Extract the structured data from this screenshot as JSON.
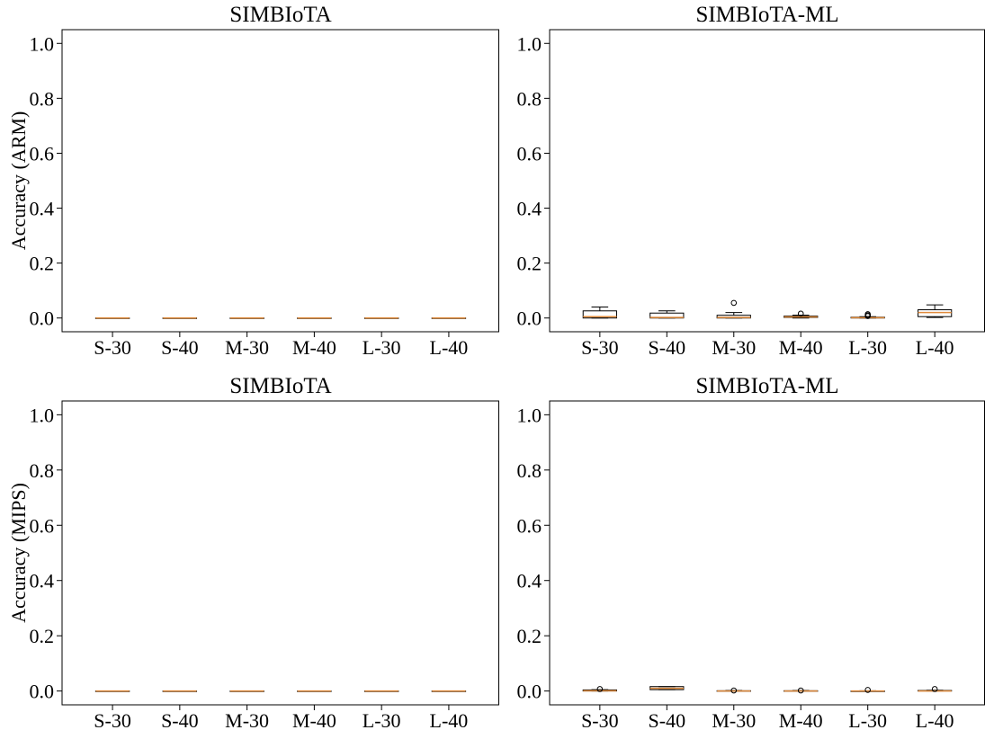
{
  "chart_data": [
    {
      "type": "box",
      "title": "SIMBIoTA",
      "ylabel": "Accuracy (ARM)",
      "xlabel": "",
      "categories": [
        "S-30",
        "S-40",
        "M-30",
        "M-40",
        "L-30",
        "L-40"
      ],
      "ylim": [
        -0.05,
        1.05
      ],
      "yticks": [
        "0.0",
        "0.2",
        "0.4",
        "0.6",
        "0.8",
        "1.0"
      ],
      "boxes": [
        {
          "whislo": 0,
          "q1": 0,
          "med": 0,
          "q3": 0,
          "whishi": 0,
          "fliers": []
        },
        {
          "whislo": 0,
          "q1": 0,
          "med": 0,
          "q3": 0,
          "whishi": 0,
          "fliers": []
        },
        {
          "whislo": 0,
          "q1": 0,
          "med": 0,
          "q3": 0,
          "whishi": 0,
          "fliers": []
        },
        {
          "whislo": 0,
          "q1": 0,
          "med": 0,
          "q3": 0,
          "whishi": 0,
          "fliers": []
        },
        {
          "whislo": 0,
          "q1": 0,
          "med": 0,
          "q3": 0,
          "whishi": 0,
          "fliers": []
        },
        {
          "whislo": 0,
          "q1": 0,
          "med": 0,
          "q3": 0,
          "whishi": 0,
          "fliers": []
        }
      ]
    },
    {
      "type": "box",
      "title": "SIMBIoTA-ML",
      "ylabel": "",
      "xlabel": "",
      "categories": [
        "S-30",
        "S-40",
        "M-30",
        "M-40",
        "L-30",
        "L-40"
      ],
      "ylim": [
        -0.05,
        1.05
      ],
      "yticks": [
        "0.0",
        "0.2",
        "0.4",
        "0.6",
        "0.8",
        "1.0"
      ],
      "boxes": [
        {
          "whislo": 0,
          "q1": 0,
          "med": 0.005,
          "q3": 0.026,
          "whishi": 0.04,
          "fliers": []
        },
        {
          "whislo": 0,
          "q1": 0,
          "med": 0.002,
          "q3": 0.018,
          "whishi": 0.026,
          "fliers": []
        },
        {
          "whislo": 0,
          "q1": 0,
          "med": 0.002,
          "q3": 0.01,
          "whishi": 0.02,
          "fliers": [
            0.055
          ]
        },
        {
          "whislo": 0,
          "q1": 0.002,
          "med": 0.004,
          "q3": 0.007,
          "whishi": 0.01,
          "fliers": [
            0.016
          ]
        },
        {
          "whislo": 0,
          "q1": 0,
          "med": 0.001,
          "q3": 0.003,
          "whishi": 0.005,
          "fliers": [
            0.007,
            0.01,
            0.014
          ]
        },
        {
          "whislo": 0.002,
          "q1": 0.005,
          "med": 0.02,
          "q3": 0.03,
          "whishi": 0.048,
          "fliers": []
        }
      ]
    },
    {
      "type": "box",
      "title": "SIMBIoTA",
      "ylabel": "Accuracy (MIPS)",
      "xlabel": "",
      "categories": [
        "S-30",
        "S-40",
        "M-30",
        "M-40",
        "L-30",
        "L-40"
      ],
      "ylim": [
        -0.05,
        1.05
      ],
      "yticks": [
        "0.0",
        "0.2",
        "0.4",
        "0.6",
        "0.8",
        "1.0"
      ],
      "boxes": [
        {
          "whislo": 0,
          "q1": 0,
          "med": 0,
          "q3": 0,
          "whishi": 0,
          "fliers": []
        },
        {
          "whislo": 0,
          "q1": 0,
          "med": 0,
          "q3": 0,
          "whishi": 0,
          "fliers": []
        },
        {
          "whislo": 0,
          "q1": 0,
          "med": 0,
          "q3": 0,
          "whishi": 0,
          "fliers": []
        },
        {
          "whislo": 0,
          "q1": 0,
          "med": 0,
          "q3": 0,
          "whishi": 0,
          "fliers": []
        },
        {
          "whislo": 0,
          "q1": 0,
          "med": 0,
          "q3": 0,
          "whishi": 0,
          "fliers": []
        },
        {
          "whislo": 0,
          "q1": 0,
          "med": 0,
          "q3": 0,
          "whishi": 0,
          "fliers": []
        }
      ]
    },
    {
      "type": "box",
      "title": "SIMBIoTA-ML",
      "ylabel": "",
      "xlabel": "",
      "categories": [
        "S-30",
        "S-40",
        "M-30",
        "M-40",
        "L-30",
        "L-40"
      ],
      "ylim": [
        -0.05,
        1.05
      ],
      "yticks": [
        "0.0",
        "0.2",
        "0.4",
        "0.6",
        "0.8",
        "1.0"
      ],
      "boxes": [
        {
          "whislo": 0,
          "q1": 0,
          "med": 0.001,
          "q3": 0.004,
          "whishi": 0.005,
          "fliers": [
            0.007
          ]
        },
        {
          "whislo": 0.005,
          "q1": 0.005,
          "med": 0.01,
          "q3": 0.016,
          "whishi": 0.016,
          "fliers": []
        },
        {
          "whislo": 0,
          "q1": 0,
          "med": 0,
          "q3": 0.001,
          "whishi": 0.002,
          "fliers": [
            0.002
          ]
        },
        {
          "whislo": 0,
          "q1": 0,
          "med": 0,
          "q3": 0.001,
          "whishi": 0.002,
          "fliers": [
            0.002
          ]
        },
        {
          "whislo": 0,
          "q1": 0,
          "med": 0,
          "q3": 0,
          "whishi": 0.001,
          "fliers": [
            0.004
          ]
        },
        {
          "whislo": 0,
          "q1": 0,
          "med": 0,
          "q3": 0.002,
          "whishi": 0.003,
          "fliers": [
            0.007
          ]
        }
      ]
    }
  ],
  "style": {
    "median_color": "#e08b3c",
    "box_edge_color": "#000000",
    "flier_color": "#000000",
    "axes_color": "#000000"
  }
}
